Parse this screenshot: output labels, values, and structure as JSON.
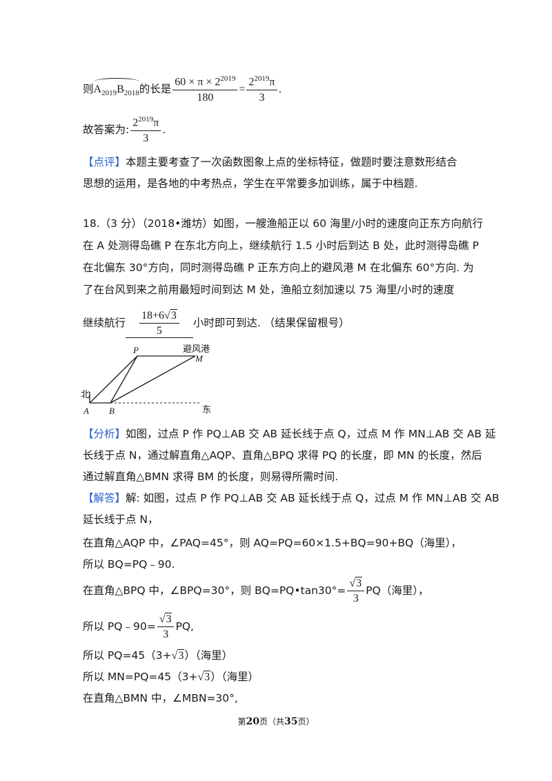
{
  "top": {
    "l1_pre": "则",
    "arc_a": "A",
    "arc_a_sub": "2019",
    "arc_b": "B",
    "arc_b_sub": "2018",
    "l1_mid": "的长是",
    "frac1_num": "60 × π × 2",
    "frac1_num_sup": "2019",
    "frac1_den": "180",
    "eq": "=",
    "frac2_num": "2",
    "frac2_num_sup": "2019",
    "frac2_num_tail": "π",
    "frac2_den": "3",
    "l1_end": ".",
    "answer_pre": "故答案为:",
    "answer_num": "2",
    "answer_num_sup": "2019",
    "answer_num_tail": "π",
    "answer_den": "3",
    "answer_end": ".",
    "comment_tag": "【点评】",
    "comment_l1": "本题主要考查了一次函数图象上点的坐标特征，做题时要注意数形结合",
    "comment_l2": "思想的运用，是各地的中考热点，学生在平常要多加训练，属于中档题."
  },
  "problem": {
    "l1": "18.（3 分）（2018•潍坊）如图，一艘渔船正以 60 海里/小时的速度向正东方向航行",
    "l2": "在 A 处测得岛礁 P 在东北方向上，继续航行 1.5 小时后到达 B 处，此时测得岛礁 P",
    "l3": "在北偏东 30°方向，同时测得岛礁 P 正东方向上的避风港 M 在北偏东 60°方向. 为",
    "l4": "了在台风到来之前用最短时间到达 M 处，渔船立刻加速以 75 海里/小时的速度",
    "l5_pre": "继续航行",
    "ans_num_pre": "18+6",
    "ans_num_rad": "3",
    "ans_den": "5",
    "l5_post": "小时即可到达. （结果保留根号）"
  },
  "figure": {
    "label_p": "P",
    "label_m": "M",
    "label_a": "A",
    "label_b": "B",
    "label_north": "北",
    "label_east": "东",
    "label_harbor": "避风港"
  },
  "analysis": {
    "tag": "【分析】",
    "l1": "如图，过点 P 作 PQ⊥AB 交 AB 延长线于点 Q，过点 M 作 MN⊥AB 交 AB 延",
    "l2": "长线于点 N，通过解直角△AQP、直角△BPQ 求得 PQ 的长度，即 MN 的长度，然后",
    "l3": "通过解直角△BMN 求得 BM 的长度，则易得所需时间."
  },
  "solution": {
    "tag": "【解答】",
    "l1": "解: 如图，过点 P 作 PQ⊥AB 交 AB 延长线于点 Q，过点 M 作 MN⊥AB 交 AB",
    "l2": "延长线于点 N，",
    "l3": "在直角△AQP 中，∠PAQ=45°，则 AQ=PQ=60×1.5+BQ=90+BQ（海里），",
    "l4": "所以  BQ=PQ﹣90.",
    "l5_pre": "在直角△BPQ 中，∠BPQ=30°，则 BQ=PQ•tan30°=",
    "l5_rad": "3",
    "l5_den": "3",
    "l5_post": "PQ（海里），",
    "l6_pre": "所以  PQ﹣90=",
    "l6_rad": "3",
    "l6_den": "3",
    "l6_post": "PQ,",
    "l7_pre": "所以  PQ=45（3+",
    "l7_rad": "3",
    "l7_post": "）（海里）",
    "l8_pre": "所以  MN=PQ=45（3+",
    "l8_rad": "3",
    "l8_post": "）（海里）",
    "l9": "在直角△BMN 中，∠MBN=30°,"
  },
  "footer": {
    "p1": "第",
    "page": "20",
    "p2": "页（共",
    "total": "35",
    "p3": "页）"
  }
}
